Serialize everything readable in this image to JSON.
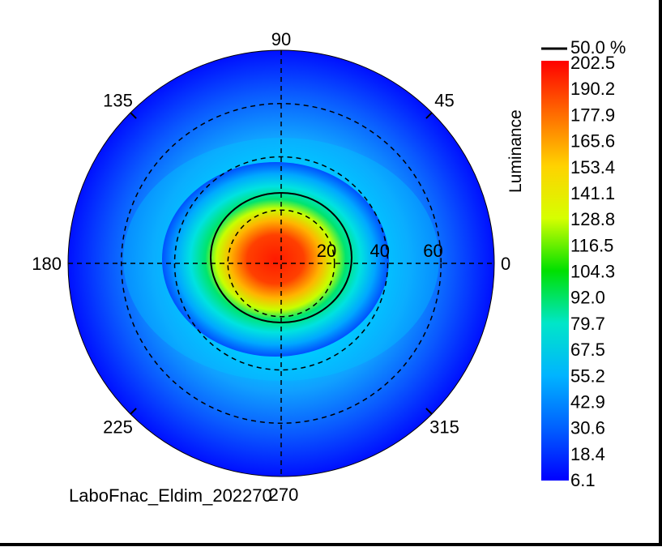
{
  "chart_data": {
    "type": "heatmap",
    "projection": "polar",
    "caption": "LaboFnac_Eldim_202270",
    "colorbar": {
      "label": "Luminance",
      "ticks": [
        "202.5",
        "190.2",
        "177.9",
        "165.6",
        "153.4",
        "141.1",
        "128.8",
        "116.5",
        "104.3",
        "92.0",
        "79.7",
        "67.5",
        "55.2",
        "42.9",
        "30.6",
        "18.4",
        "6.1"
      ],
      "min": 6.1,
      "max": 202.5,
      "colors": [
        "#ff0000",
        "#ff6a00",
        "#ffd200",
        "#d6ff00",
        "#00e000",
        "#00e6c8",
        "#00b4ff",
        "#0060ff",
        "#0000ff"
      ]
    },
    "contour_legend": "50.0 %",
    "contour_level_percent": 50.0,
    "azimuth_labels": [
      {
        "text": "90",
        "deg": 90
      },
      {
        "text": "45",
        "deg": 45
      },
      {
        "text": "0",
        "deg": 0
      },
      {
        "text": "315",
        "deg": 315
      },
      {
        "text": "270",
        "deg": 270
      },
      {
        "text": "225",
        "deg": 225
      },
      {
        "text": "180",
        "deg": 180
      },
      {
        "text": "135",
        "deg": 135
      }
    ],
    "radial_labels": [
      "20",
      "40",
      "60"
    ],
    "radial_rings": [
      20,
      40,
      60
    ],
    "radial_max": 80,
    "field": {
      "peak_value": 202.5,
      "peak_center": [
        0,
        0
      ],
      "blobs": [
        {
          "cx_deg": 0,
          "cy_deg": 0,
          "value": 202.5,
          "rx": 26,
          "ry": 22
        },
        {
          "cx_deg": -10,
          "cy_deg": 0,
          "value": 150,
          "rx": 34,
          "ry": 30
        }
      ],
      "background_value": 20
    },
    "grid": true
  }
}
